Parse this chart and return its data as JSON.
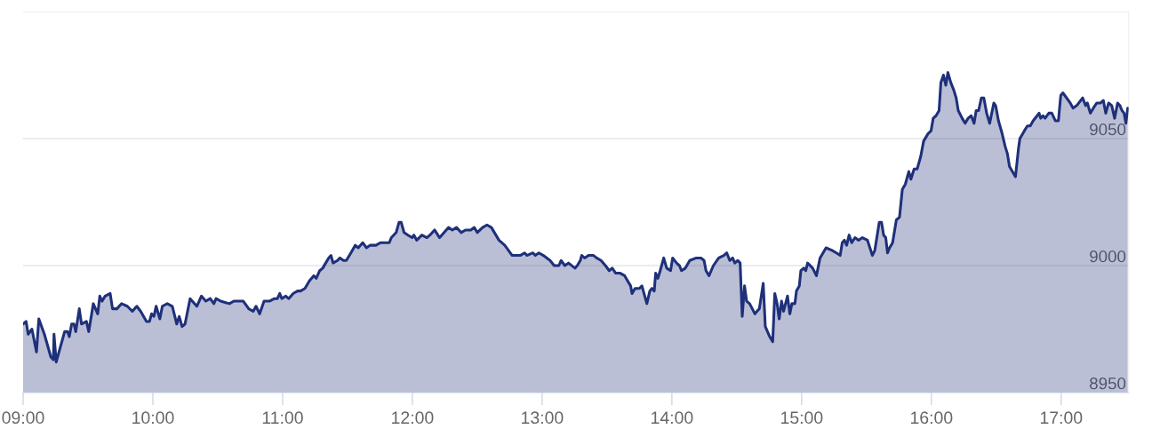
{
  "chart_data": {
    "type": "area",
    "x": [
      9.0,
      9.023,
      9.039,
      9.068,
      9.103,
      9.121,
      9.164,
      9.214,
      9.233,
      9.238,
      9.255,
      9.32,
      9.342,
      9.356,
      9.374,
      9.392,
      9.406,
      9.433,
      9.45,
      9.488,
      9.506,
      9.541,
      9.575,
      9.591,
      9.609,
      9.632,
      9.671,
      9.689,
      9.723,
      9.758,
      9.803,
      9.842,
      9.876,
      9.906,
      9.951,
      9.974,
      9.99,
      10.008,
      10.025,
      10.054,
      10.073,
      10.111,
      10.15,
      10.184,
      10.203,
      10.225,
      10.248,
      10.287,
      10.339,
      10.374,
      10.408,
      10.442,
      10.47,
      10.487,
      10.522,
      10.59,
      10.624,
      10.658,
      10.697,
      10.739,
      10.773,
      10.795,
      10.823,
      10.857,
      10.898,
      10.937,
      10.96,
      10.978,
      10.994,
      11.024,
      11.047,
      11.081,
      11.115,
      11.138,
      11.172,
      11.206,
      11.24,
      11.259,
      11.286,
      11.309,
      11.332,
      11.355,
      11.373,
      11.389,
      11.423,
      11.442,
      11.469,
      11.491,
      11.526,
      11.56,
      11.583,
      11.617,
      11.647,
      11.674,
      11.719,
      11.754,
      11.793,
      11.822,
      11.838,
      11.875,
      11.897,
      11.914,
      11.936,
      11.966,
      11.998,
      12.012,
      12.034,
      12.073,
      12.112,
      12.135,
      12.171,
      12.21,
      12.279,
      12.308,
      12.34,
      12.376,
      12.409,
      12.45,
      12.477,
      12.5,
      12.541,
      12.575,
      12.609,
      12.667,
      12.712,
      12.769,
      12.81,
      12.831,
      12.865,
      12.883,
      12.929,
      12.947,
      12.975,
      13.009,
      13.061,
      13.093,
      13.129,
      13.146,
      13.175,
      13.203,
      13.253,
      13.271,
      13.294,
      13.305,
      13.328,
      13.358,
      13.381,
      13.396,
      13.42,
      13.454,
      13.488,
      13.517,
      13.54,
      13.567,
      13.602,
      13.636,
      13.659,
      13.682,
      13.693,
      13.716,
      13.75,
      13.769,
      13.791,
      13.807,
      13.83,
      13.846,
      13.864,
      13.875,
      13.892,
      13.91,
      13.937,
      13.96,
      13.99,
      14.006,
      14.036,
      14.058,
      14.074,
      14.104,
      14.138,
      14.188,
      14.224,
      14.248,
      14.263,
      14.286,
      14.32,
      14.361,
      14.4,
      14.423,
      14.446,
      14.468,
      14.485,
      14.508,
      14.526,
      14.542,
      14.56,
      14.576,
      14.599,
      14.64,
      14.674,
      14.704,
      14.72,
      14.754,
      14.777,
      14.793,
      14.811,
      14.827,
      14.845,
      14.861,
      14.891,
      14.909,
      14.925,
      14.948,
      14.96,
      14.982,
      14.994,
      15.016,
      15.032,
      15.046,
      15.085,
      15.114,
      15.142,
      15.165,
      15.188,
      15.234,
      15.268,
      15.297,
      15.313,
      15.329,
      15.347,
      15.366,
      15.386,
      15.411,
      15.439,
      15.468,
      15.507,
      15.545,
      15.564,
      15.598,
      15.616,
      15.632,
      15.648,
      15.662,
      15.678,
      15.701,
      15.73,
      15.754,
      15.776,
      15.799,
      15.826,
      15.842,
      15.867,
      15.89,
      15.918,
      15.94,
      15.975,
      15.997,
      16.014,
      16.036,
      16.059,
      16.073,
      16.093,
      16.111,
      16.127,
      16.15,
      16.173,
      16.191,
      16.207,
      16.237,
      16.26,
      16.283,
      16.307,
      16.329,
      16.345,
      16.364,
      16.385,
      16.404,
      16.426,
      16.449,
      16.481,
      16.495,
      16.517,
      16.545,
      16.568,
      16.586,
      16.602,
      16.625,
      16.648,
      16.671,
      16.682,
      16.716,
      16.74,
      16.762,
      16.784,
      16.815,
      16.83,
      16.842,
      16.86,
      16.876,
      16.905,
      16.928,
      16.955,
      16.979,
      16.997,
      17.013,
      17.042,
      17.07,
      17.092,
      17.12,
      17.166,
      17.188,
      17.202,
      17.225,
      17.248,
      17.275,
      17.303,
      17.325,
      17.344,
      17.366,
      17.39,
      17.412,
      17.435,
      17.453,
      17.469,
      17.485,
      17.499,
      17.513
    ],
    "series": [
      {
        "color": "#1f307a",
        "values": [
          8977,
          8978,
          8973,
          8975,
          8966,
          8979,
          8973,
          8964,
          8963,
          8973,
          8962,
          8974,
          8974,
          8972,
          8977,
          8977,
          8974,
          8983,
          8977,
          8978,
          8974,
          8985,
          8981,
          8988,
          8986,
          8988,
          8989,
          8983,
          8983,
          8985,
          8984,
          8982,
          8984,
          8982,
          8978,
          8978,
          8981,
          8980,
          8984,
          8979,
          8984,
          8985,
          8984,
          8977,
          8980,
          8976,
          8977,
          8987,
          8984,
          8988,
          8986,
          8987,
          8985,
          8987,
          8986,
          8985,
          8986,
          8986,
          8986,
          8983,
          8982,
          8984,
          8981,
          8986,
          8986,
          8987,
          8987,
          8989,
          8987,
          8988,
          8987,
          8989,
          8990,
          8990,
          8991,
          8994,
          8996,
          8995,
          8998,
          8999,
          9001,
          9003,
          9004,
          9001,
          9002,
          9003,
          9002,
          9002,
          9005,
          9008,
          9007,
          9009,
          9007,
          9008,
          9008,
          9009,
          9009,
          9009,
          9011,
          9013,
          9017,
          9017,
          9013,
          9012,
          9011,
          9012,
          9010,
          9012,
          9011,
          9012,
          9014,
          9011,
          9015,
          9014,
          9015,
          9013,
          9014,
          9014,
          9015,
          9013,
          9015,
          9016,
          9015,
          9010,
          9008,
          9004,
          9004,
          9004,
          9005,
          9004,
          9005,
          9004,
          9005,
          9004,
          9002,
          9000,
          9000,
          9002,
          9000,
          9001,
          8999,
          9000,
          9002,
          9004,
          9003,
          9004,
          9004,
          9004,
          9003,
          9002,
          9000,
          8998,
          8999,
          8997,
          8997,
          8996,
          8994,
          8992,
          8989,
          8991,
          8991,
          8992,
          8988,
          8985,
          8990,
          8991,
          8990,
          8997,
          8995,
          8998,
          9003,
          8999,
          8998,
          9003,
          9001,
          9000,
          8998,
          8999,
          9002,
          9003,
          9003,
          9002,
          8998,
          8996,
          9000,
          9003,
          9004,
          9005,
          9002,
          9003,
          9001,
          9002,
          9001,
          8980,
          8992,
          8986,
          8985,
          8981,
          8983,
          8993,
          8976,
          8972,
          8970,
          8989,
          8985,
          8979,
          8986,
          8982,
          8988,
          8981,
          8985,
          8985,
          8990,
          8992,
          8998,
          8999,
          8998,
          9001,
          8999,
          8996,
          9003,
          9005,
          9007,
          9006,
          9005,
          9004,
          9009,
          9010,
          9008,
          9012,
          9009,
          9011,
          9010,
          9011,
          9010,
          9004,
          9006,
          9017,
          9017,
          9012,
          9011,
          9005,
          9007,
          9009,
          9018,
          9019,
          9030,
          9032,
          9037,
          9034,
          9038,
          9038,
          9043,
          9049,
          9052,
          9053,
          9058,
          9059,
          9061,
          9072,
          9075,
          9071,
          9076,
          9072,
          9069,
          9066,
          9061,
          9058,
          9056,
          9058,
          9059,
          9056,
          9061,
          9061,
          9066,
          9066,
          9060,
          9056,
          9064,
          9063,
          9057,
          9052,
          9047,
          9044,
          9039,
          9037,
          9035,
          9046,
          9050,
          9053,
          9055,
          9055,
          9057,
          9059,
          9060,
          9058,
          9059,
          9058,
          9060,
          9060,
          9057,
          9057,
          9067,
          9068,
          9066,
          9064,
          9062,
          9063,
          9066,
          9063,
          9064,
          9060,
          9062,
          9064,
          9064,
          9065,
          9060,
          9064,
          9063,
          9058,
          9064,
          9063,
          9061,
          9060,
          9056,
          9062
        ]
      }
    ],
    "xlim": [
      9,
      17.52
    ],
    "ylim": [
      8950,
      9100
    ],
    "xticks": [
      {
        "value": 9,
        "label": "09:00"
      },
      {
        "value": 10,
        "label": "10:00"
      },
      {
        "value": 11,
        "label": "11:00"
      },
      {
        "value": 12,
        "label": "12:00"
      },
      {
        "value": 13,
        "label": "13:00"
      },
      {
        "value": 14,
        "label": "14:00"
      },
      {
        "value": 15,
        "label": "15:00"
      },
      {
        "value": 16,
        "label": "16:00"
      },
      {
        "value": 17,
        "label": "17:00"
      }
    ],
    "yticks": [
      8950,
      9000,
      9050,
      {
        "value": 9100,
        "label": null
      }
    ],
    "grid": "y"
  }
}
